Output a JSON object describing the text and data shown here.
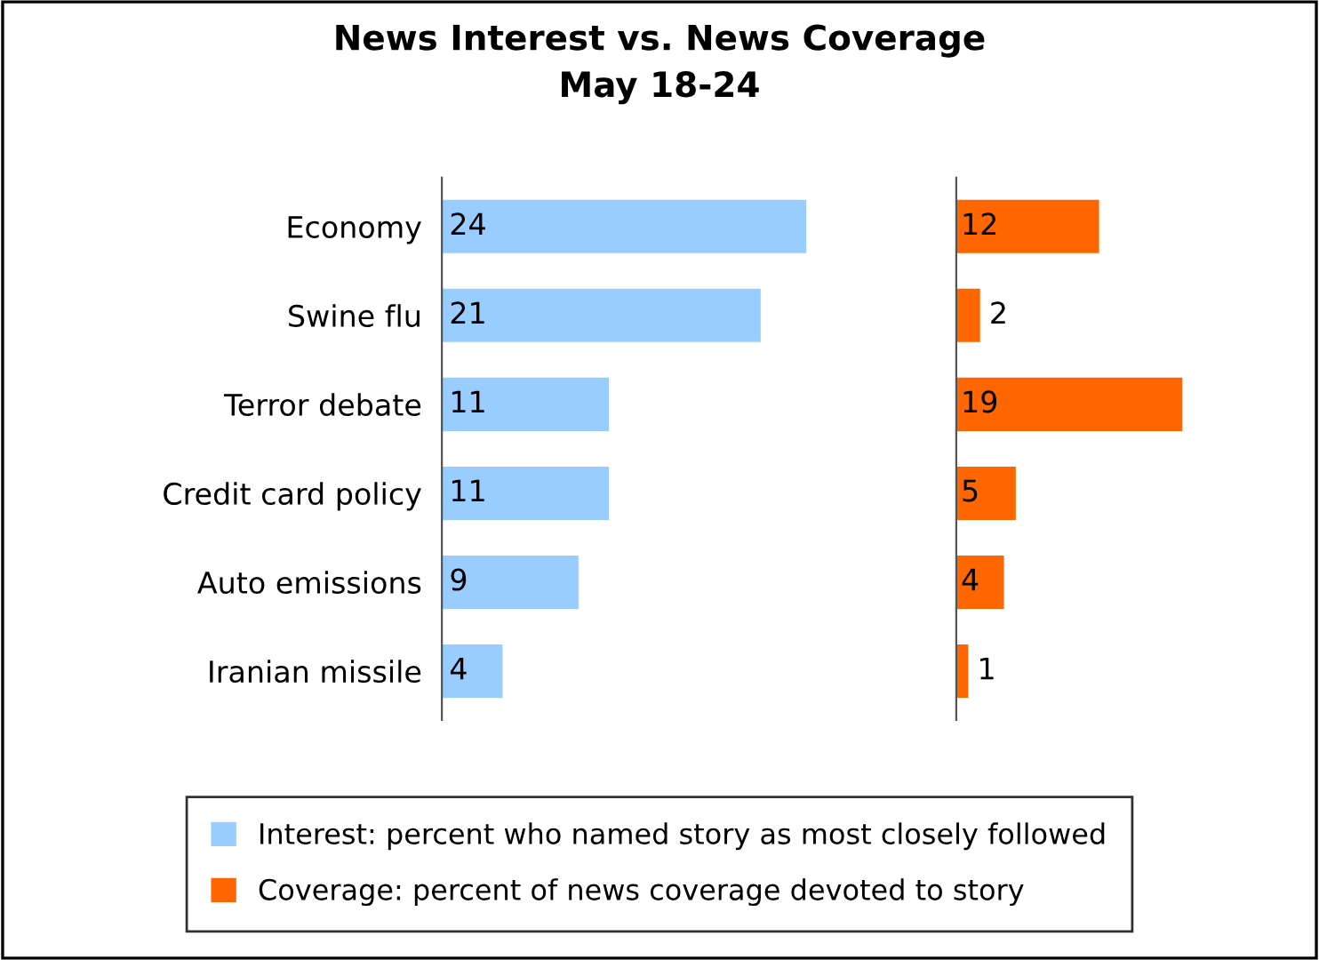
{
  "chart_data": [
    {
      "type": "bar",
      "orientation": "horizontal",
      "title": "News Interest vs. News Coverage\nMay 18-24",
      "categories": [
        "Economy",
        "Swine flu",
        "Terror debate",
        "Credit card policy",
        "Auto emissions",
        "Iranian missile"
      ],
      "series": [
        {
          "name": "Interest: percent who named story as most closely followed",
          "color": "#99ccff",
          "values": [
            24,
            21,
            11,
            11,
            9,
            4
          ]
        }
      ],
      "data_labels": true,
      "legend": "bottom",
      "tick_labels": "y"
    },
    {
      "type": "bar",
      "orientation": "horizontal",
      "categories": [
        null,
        null,
        null,
        null,
        null,
        null
      ],
      "series": [
        {
          "name": "Coverage: percent of news coverage devoted to story",
          "color": "#ff6600",
          "values": [
            12,
            2,
            19,
            5,
            4,
            1
          ]
        }
      ],
      "data_labels": true,
      "legend": "bottom",
      "tick_labels": false
    }
  ]
}
